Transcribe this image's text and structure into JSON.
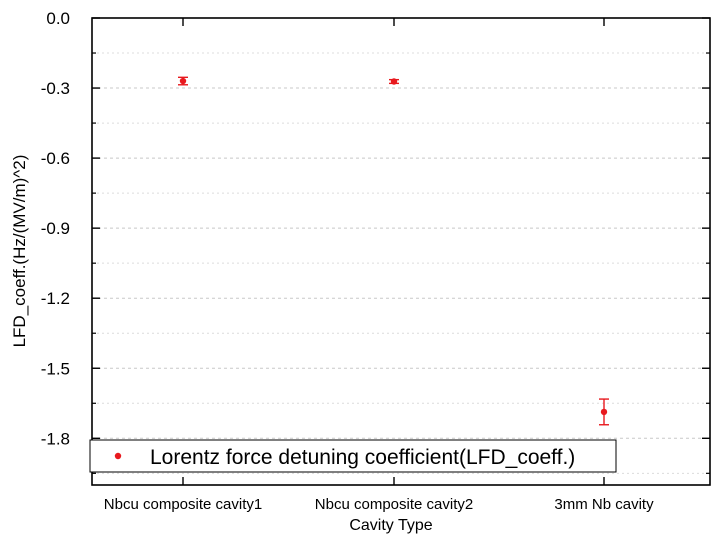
{
  "chart_data": {
    "type": "scatter",
    "title": "",
    "xlabel": "Cavity Type",
    "ylabel": "LFD_coeff.(Hz/(MV/m)^2)",
    "categories": [
      "Nbcu composite cavity1",
      "Nbcu composite cavity2",
      "3mm Nb cavity"
    ],
    "ylim": [
      -2.0,
      0.0
    ],
    "yticks": [
      0.0,
      -0.3,
      -0.6,
      -0.9,
      -1.2,
      -1.5,
      -1.8
    ],
    "ytick_labels": [
      "0.0",
      "-0.3",
      "-0.6",
      "-0.9",
      "-1.2",
      "-1.5",
      "-1.8"
    ],
    "minor_grid": [
      -0.15,
      -0.45,
      -0.75,
      -1.05,
      -1.35,
      -1.65,
      -1.95
    ],
    "grid": true,
    "series": [
      {
        "name": "Lorentz force detuning coefficient(LFD_coeff.)",
        "color": "#e8191e",
        "values": [
          -0.27,
          -0.272,
          -1.687
        ],
        "errors": [
          0.016,
          0.008,
          0.055
        ]
      }
    ],
    "legend": {
      "placement": "bottom-left",
      "label": "Lorentz force detuning coefficient(LFD_coeff.)"
    }
  }
}
